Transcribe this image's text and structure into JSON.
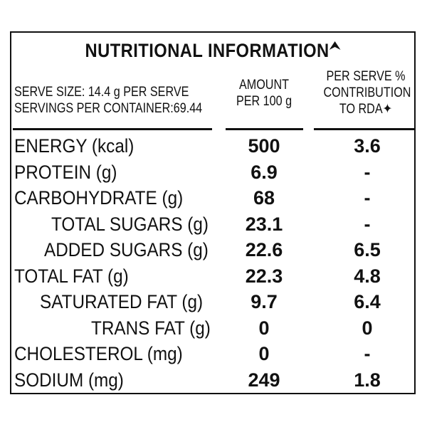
{
  "label": {
    "title": "NUTRITIONAL INFORMATION",
    "serve_size": "SERVE SIZE: 14.4 g PER SERVE",
    "servings": "SERVINGS PER CONTAINER:69.44",
    "amount_header": [
      "AMOUNT",
      "PER 100 g"
    ],
    "rda_header": [
      "PER SERVE %",
      "CONTRIBUTION",
      "TO RDA✦"
    ],
    "rows": [
      {
        "name": "ENERGY (kcal)",
        "amount": "500",
        "rda": "3.6"
      },
      {
        "name": "PROTEIN (g)",
        "amount": "6.9",
        "rda": "-"
      },
      {
        "name": "CARBOHYDRATE (g)",
        "amount": "68",
        "rda": "-"
      },
      {
        "name": "TOTAL SUGARS (g)",
        "amount": "23.1",
        "rda": "-"
      },
      {
        "name": "ADDED SUGARS (g)",
        "amount": "22.6",
        "rda": "6.5"
      },
      {
        "name": "TOTAL FAT (g)",
        "amount": "22.3",
        "rda": "4.8"
      },
      {
        "name": "SATURATED FAT (g)",
        "amount": "9.7",
        "rda": "6.4"
      },
      {
        "name": "TRANS FAT (g)",
        "amount": "0",
        "rda": "0"
      },
      {
        "name": "CHOLESTEROL (mg)",
        "amount": "0",
        "rda": "-"
      },
      {
        "name": "SODIUM (mg)",
        "amount": "249",
        "rda": "1.8"
      }
    ]
  }
}
